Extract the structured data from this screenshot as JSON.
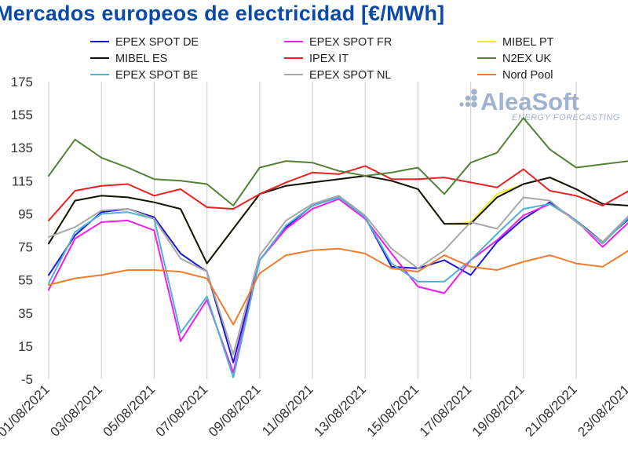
{
  "chart_data": {
    "type": "line",
    "title": "Mercados europeos de electricidad [€/MWh]",
    "ylim": [
      -5,
      175
    ],
    "y_ticks": [
      "175",
      "155",
      "135",
      "115",
      "95",
      "75",
      "55",
      "35",
      "15",
      "-5"
    ],
    "x_tick_labels": [
      "01/08/2021",
      "03/08/2021",
      "05/08/2021",
      "07/08/2021",
      "09/08/2021",
      "11/08/2021",
      "13/08/2021",
      "15/08/2021",
      "17/08/2021",
      "19/08/2021",
      "21/08/2021",
      "23/08/2021"
    ],
    "x": [
      "01/08/2021",
      "02/08/2021",
      "03/08/2021",
      "04/08/2021",
      "05/08/2021",
      "06/08/2021",
      "07/08/2021",
      "08/08/2021",
      "09/08/2021",
      "10/08/2021",
      "11/08/2021",
      "12/08/2021",
      "13/08/2021",
      "14/08/2021",
      "15/08/2021",
      "16/08/2021",
      "17/08/2021",
      "18/08/2021",
      "19/08/2021",
      "20/08/2021",
      "21/08/2021",
      "22/08/2021",
      "23/08/2021"
    ],
    "grid": "vertical",
    "legend": "top",
    "series": [
      {
        "name": "EPEX SPOT DE",
        "color": "#1a1ad6",
        "values": [
          58,
          82,
          96,
          98,
          93,
          71,
          60,
          5,
          67,
          87,
          100,
          105,
          93,
          63,
          62,
          67,
          58,
          78,
          92,
          102,
          91,
          78,
          92
        ]
      },
      {
        "name": "EPEX SPOT FR",
        "color": "#f01df0",
        "values": [
          49,
          80,
          90,
          91,
          85,
          18,
          43,
          -1,
          67,
          86,
          98,
          104,
          92,
          71,
          51,
          47,
          67,
          79,
          94,
          101,
          91,
          75,
          90
        ]
      },
      {
        "name": "MIBEL PT",
        "color": "#f5ee14",
        "values": [
          77,
          103,
          106,
          105,
          102,
          98,
          65,
          86,
          107,
          112,
          114,
          116,
          118,
          115,
          110,
          89,
          90,
          107,
          113,
          117,
          110,
          101,
          100
        ]
      },
      {
        "name": "MIBEL ES",
        "color": "#111111",
        "values": [
          77,
          103,
          106,
          105,
          102,
          98,
          65,
          86,
          107,
          112,
          114,
          116,
          118,
          115,
          110,
          89,
          89,
          105,
          113,
          117,
          110,
          101,
          100
        ]
      },
      {
        "name": "IPEX IT",
        "color": "#ee2020",
        "values": [
          91,
          109,
          112,
          113,
          106,
          110,
          99,
          98,
          107,
          114,
          120,
          119,
          124,
          116,
          116,
          117,
          114,
          111,
          122,
          109,
          106,
          100,
          109
        ]
      },
      {
        "name": "N2EX UK",
        "color": "#538135",
        "values": [
          118,
          140,
          129,
          123,
          116,
          115,
          113,
          100,
          123,
          127,
          126,
          121,
          118,
          120,
          123,
          107,
          126,
          132,
          153,
          134,
          123,
          125,
          127
        ]
      },
      {
        "name": "EPEX SPOT BE",
        "color": "#4db3d1",
        "values": [
          53,
          84,
          95,
          96,
          92,
          23,
          45,
          -4,
          67,
          88,
          100,
          105,
          93,
          65,
          54,
          54,
          67,
          83,
          98,
          101,
          91,
          77,
          93
        ]
      },
      {
        "name": "EPEX SPOT NL",
        "color": "#a8a8a8",
        "values": [
          81,
          87,
          97,
          98,
          92,
          68,
          60,
          10,
          70,
          91,
          101,
          106,
          94,
          74,
          62,
          73,
          90,
          86,
          105,
          103,
          90,
          78,
          94
        ]
      },
      {
        "name": "Nord Pool",
        "color": "#ed7d31",
        "values": [
          52,
          56,
          58,
          61,
          61,
          60,
          56,
          28,
          59,
          70,
          73,
          74,
          71,
          62,
          60,
          70,
          63,
          61,
          66,
          70,
          65,
          63,
          73
        ]
      }
    ]
  },
  "watermark": {
    "brand": "AleaSoft",
    "tagline": "ENERGY FORECASTING"
  }
}
